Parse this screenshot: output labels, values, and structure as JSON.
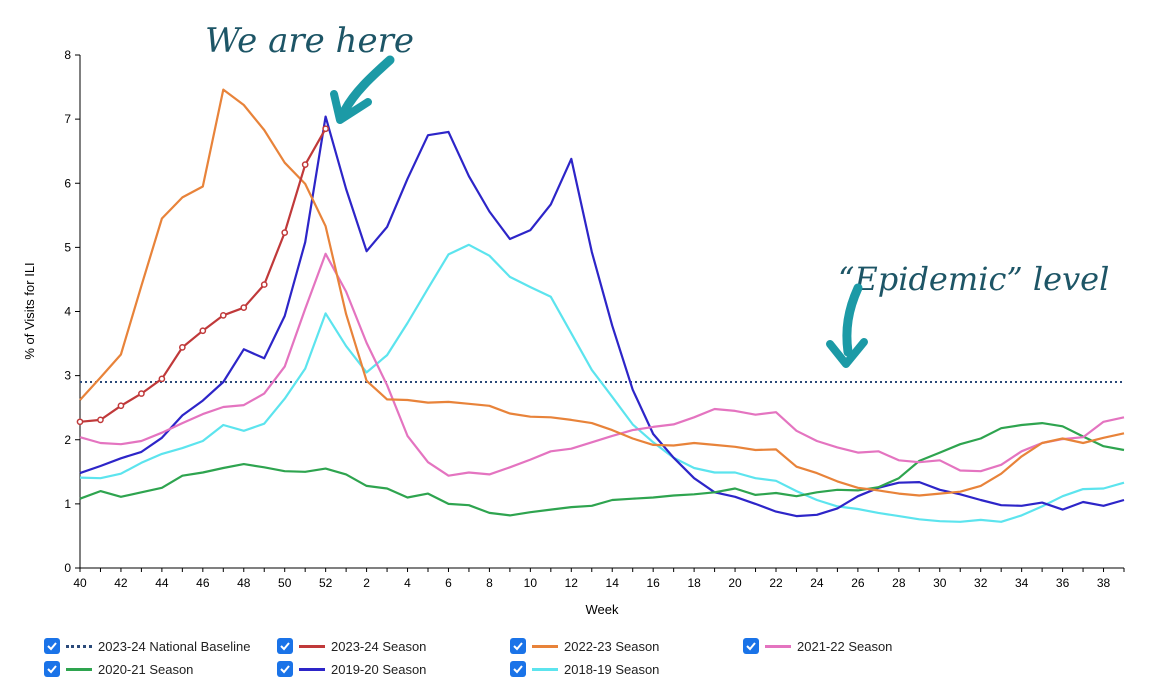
{
  "chart_data": {
    "type": "line",
    "xlabel": "Week",
    "ylabel": "% of Visits for ILI",
    "ylim": [
      0,
      8
    ],
    "yticks": [
      0,
      1,
      2,
      3,
      4,
      5,
      6,
      7,
      8
    ],
    "x_tick_labels": [
      "40",
      "42",
      "44",
      "46",
      "48",
      "50",
      "52",
      "2",
      "4",
      "6",
      "8",
      "10",
      "12",
      "14",
      "16",
      "18",
      "20",
      "22",
      "24",
      "26",
      "28",
      "30",
      "32",
      "34",
      "36",
      "38"
    ],
    "x_weeks": [
      40,
      41,
      42,
      43,
      44,
      45,
      46,
      47,
      48,
      49,
      50,
      51,
      52,
      1,
      2,
      3,
      4,
      5,
      6,
      7,
      8,
      9,
      10,
      11,
      12,
      13,
      14,
      15,
      16,
      17,
      18,
      19,
      20,
      21,
      22,
      23,
      24,
      25,
      26,
      27,
      28,
      29,
      30,
      31,
      32,
      33,
      34,
      35,
      36,
      37,
      38,
      39
    ],
    "baseline": {
      "name": "2023-24 National Baseline",
      "value": 2.9,
      "color": "#2b4a7a"
    },
    "series": [
      {
        "name": "2023-24 Season",
        "color": "#c0393a",
        "markers": true,
        "values": [
          2.28,
          2.31,
          2.53,
          2.72,
          2.95,
          3.44,
          3.7,
          3.94,
          4.06,
          4.42,
          5.23,
          6.29,
          6.85
        ]
      },
      {
        "name": "2022-23 Season",
        "color": "#e8833a",
        "values": [
          2.62,
          2.97,
          3.33,
          4.4,
          5.45,
          5.78,
          5.95,
          7.46,
          7.22,
          6.83,
          6.32,
          5.99,
          5.33,
          3.96,
          2.92,
          2.63,
          2.62,
          2.58,
          2.59,
          2.56,
          2.53,
          2.41,
          2.36,
          2.35,
          2.31,
          2.26,
          2.15,
          2.02,
          1.92,
          1.91,
          1.95,
          1.92,
          1.89,
          1.84,
          1.85,
          1.58,
          1.48,
          1.35,
          1.25,
          1.21,
          1.16,
          1.13,
          1.16,
          1.19,
          1.28,
          1.47,
          1.74,
          1.95,
          2.02,
          1.95,
          2.03,
          2.1
        ]
      },
      {
        "name": "2021-22 Season",
        "color": "#e474c0",
        "values": [
          2.04,
          1.95,
          1.93,
          1.98,
          2.11,
          2.26,
          2.4,
          2.51,
          2.54,
          2.72,
          3.14,
          4.04,
          4.9,
          4.31,
          3.51,
          2.85,
          2.06,
          1.65,
          1.44,
          1.49,
          1.46,
          1.57,
          1.69,
          1.82,
          1.86,
          1.96,
          2.06,
          2.15,
          2.2,
          2.24,
          2.35,
          2.48,
          2.45,
          2.39,
          2.43,
          2.14,
          1.98,
          1.88,
          1.8,
          1.82,
          1.68,
          1.65,
          1.68,
          1.52,
          1.51,
          1.61,
          1.82,
          1.95,
          2.01,
          2.04,
          2.28,
          2.35
        ]
      },
      {
        "name": "2020-21 Season",
        "color": "#2ea44f",
        "values": [
          1.08,
          1.2,
          1.11,
          1.18,
          1.25,
          1.44,
          1.49,
          1.56,
          1.62,
          1.57,
          1.51,
          1.5,
          1.55,
          1.46,
          1.28,
          1.24,
          1.1,
          1.16,
          1.0,
          0.98,
          0.86,
          0.82,
          0.87,
          0.91,
          0.95,
          0.97,
          1.06,
          1.08,
          1.1,
          1.13,
          1.15,
          1.18,
          1.24,
          1.14,
          1.17,
          1.12,
          1.18,
          1.22,
          1.21,
          1.26,
          1.4,
          1.67,
          1.8,
          1.93,
          2.02,
          2.18,
          2.23,
          2.26,
          2.21,
          2.05,
          1.9,
          1.84
        ]
      },
      {
        "name": "2019-20 Season",
        "color": "#2d25c8",
        "values": [
          1.48,
          1.59,
          1.71,
          1.81,
          2.03,
          2.38,
          2.61,
          2.9,
          3.41,
          3.27,
          3.93,
          5.08,
          7.04,
          5.91,
          4.94,
          5.32,
          6.07,
          6.75,
          6.8,
          6.11,
          5.56,
          5.13,
          5.27,
          5.67,
          6.38,
          4.93,
          3.78,
          2.78,
          2.09,
          1.72,
          1.4,
          1.18,
          1.11,
          1.0,
          0.88,
          0.81,
          0.83,
          0.93,
          1.12,
          1.25,
          1.33,
          1.34,
          1.22,
          1.15,
          1.06,
          0.98,
          0.97,
          1.02,
          0.91,
          1.03,
          0.97,
          1.06
        ]
      },
      {
        "name": "2018-19 Season",
        "color": "#5ce4ee",
        "values": [
          1.41,
          1.4,
          1.47,
          1.64,
          1.78,
          1.87,
          1.98,
          2.23,
          2.14,
          2.25,
          2.64,
          3.11,
          3.97,
          3.46,
          3.05,
          3.32,
          3.82,
          4.36,
          4.89,
          5.04,
          4.87,
          4.54,
          4.38,
          4.23,
          3.66,
          3.09,
          2.67,
          2.24,
          1.96,
          1.72,
          1.56,
          1.49,
          1.49,
          1.4,
          1.36,
          1.2,
          1.06,
          0.96,
          0.92,
          0.86,
          0.81,
          0.76,
          0.73,
          0.72,
          0.75,
          0.72,
          0.82,
          0.96,
          1.12,
          1.23,
          1.24,
          1.33
        ]
      }
    ]
  },
  "annotations": {
    "here": "We are here",
    "epidemic": "“Epidemic” level"
  }
}
